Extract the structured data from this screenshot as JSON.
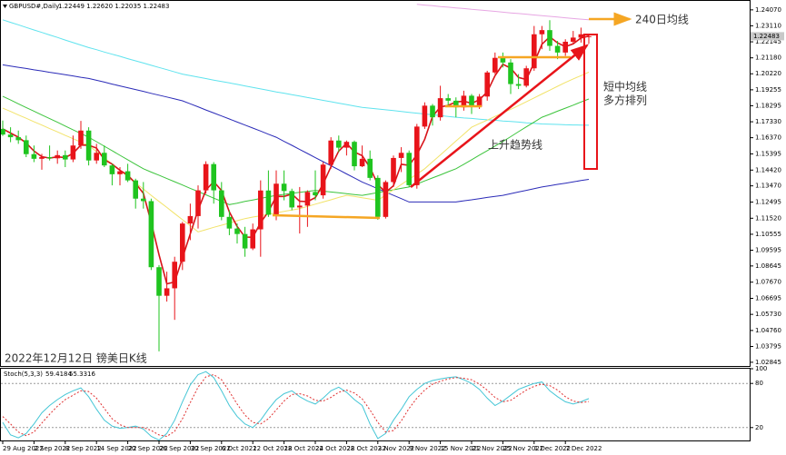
{
  "chart_data": [
    {
      "type": "candlestick",
      "title": "GBPUSD#,Daily",
      "subtitle": "1.22449 1.22620 1.22035 1.22483",
      "categories": [
        "29 Aug 2022",
        null,
        null,
        null,
        "2 Sep 2022",
        null,
        null,
        null,
        "8 Sep 2022",
        null,
        null,
        null,
        "14 Sep 2022",
        null,
        null,
        null,
        "20 Sep 2022",
        null,
        null,
        null,
        "26 Sep 2022",
        null,
        null,
        null,
        "30 Sep 2022",
        null,
        null,
        null,
        "6 Oct 2022",
        null,
        null,
        null,
        "12 Oct 2022",
        null,
        null,
        null,
        "18 Oct 2022",
        null,
        null,
        null,
        "24 Oct 2022",
        null,
        null,
        null,
        "28 Oct 2022",
        null,
        null,
        null,
        "3 Nov 2022",
        null,
        null,
        null,
        "9 Nov 2022",
        null,
        null,
        null,
        "15 Nov 2022",
        null,
        null,
        null,
        "21 Nov 2022",
        null,
        null,
        null,
        "25 Nov 2022",
        null,
        null,
        null,
        "1 Dec 2022",
        null,
        null,
        null,
        "7 Dec 2022",
        null,
        null,
        null
      ],
      "open": [
        1.169,
        1.1656,
        1.164,
        1.1622,
        1.1538,
        1.151,
        1.152,
        1.1513,
        1.1532,
        1.1506,
        1.159,
        1.168,
        1.15,
        1.1546,
        1.147,
        1.1417,
        1.1435,
        1.138,
        1.127,
        1.1255,
        1.0857,
        1.0685,
        1.073,
        1.089,
        1.112,
        1.1165,
        1.132,
        1.1478,
        1.132,
        1.116,
        1.109,
        1.1057,
        1.097,
        1.1085,
        1.1319,
        1.1173,
        1.136,
        1.1316,
        1.1217,
        1.1228,
        1.131,
        1.129,
        1.1475,
        1.162,
        1.1577,
        1.1612,
        1.1465,
        1.151,
        1.1395,
        1.116,
        1.137,
        1.1515,
        1.1546,
        1.1351,
        1.1704,
        1.183,
        1.176,
        1.1875,
        1.186,
        1.182,
        1.189,
        1.1823,
        1.1885,
        1.203,
        1.2118,
        1.209,
        1.196,
        1.195,
        1.2055,
        1.226,
        1.2285,
        1.219,
        1.215,
        1.2215,
        1.224,
        1.22449
      ],
      "high": [
        1.174,
        1.17,
        1.168,
        1.165,
        1.159,
        1.154,
        1.159,
        1.156,
        1.156,
        1.165,
        1.1738,
        1.17,
        1.16,
        1.159,
        1.148,
        1.146,
        1.148,
        1.139,
        1.137,
        1.127,
        1.087,
        1.083,
        1.092,
        1.113,
        1.124,
        1.135,
        1.1495,
        1.149,
        1.137,
        1.12,
        1.112,
        1.11,
        1.112,
        1.138,
        1.144,
        1.144,
        1.144,
        1.133,
        1.134,
        1.132,
        1.144,
        1.149,
        1.164,
        1.165,
        1.162,
        1.162,
        1.159,
        1.156,
        1.141,
        1.138,
        1.153,
        1.158,
        1.156,
        1.172,
        1.185,
        1.184,
        1.195,
        1.19,
        1.188,
        1.192,
        1.19,
        1.19,
        1.204,
        1.215,
        1.215,
        1.211,
        1.202,
        1.207,
        1.231,
        1.231,
        1.2345,
        1.222,
        1.223,
        1.228,
        1.23,
        1.2262
      ],
      "low": [
        1.1648,
        1.161,
        1.16,
        1.152,
        1.149,
        1.1444,
        1.15,
        1.148,
        1.146,
        1.149,
        1.157,
        1.147,
        1.148,
        1.146,
        1.135,
        1.135,
        1.137,
        1.121,
        1.121,
        1.084,
        1.035,
        1.065,
        1.054,
        1.084,
        1.102,
        1.109,
        1.13,
        1.124,
        1.114,
        1.105,
        1.1,
        1.092,
        1.096,
        1.092,
        1.116,
        1.114,
        1.126,
        1.12,
        1.106,
        1.11,
        1.126,
        1.127,
        1.145,
        1.155,
        1.153,
        1.144,
        1.146,
        1.138,
        1.1143,
        1.115,
        1.134,
        1.143,
        1.134,
        1.133,
        1.169,
        1.171,
        1.174,
        1.183,
        1.176,
        1.18,
        1.178,
        1.181,
        1.186,
        1.202,
        1.206,
        1.19,
        1.193,
        1.194,
        1.204,
        1.217,
        1.216,
        1.211,
        1.213,
        1.22,
        1.221,
        1.22035
      ],
      "close": [
        1.1656,
        1.164,
        1.1622,
        1.1538,
        1.151,
        1.152,
        1.1513,
        1.1532,
        1.1506,
        1.159,
        1.168,
        1.15,
        1.1546,
        1.147,
        1.1417,
        1.1435,
        1.138,
        1.127,
        1.1255,
        1.0857,
        1.0685,
        1.073,
        1.089,
        1.112,
        1.1165,
        1.132,
        1.1478,
        1.132,
        1.116,
        1.109,
        1.1057,
        1.097,
        1.1085,
        1.1319,
        1.1173,
        1.136,
        1.1316,
        1.1217,
        1.1228,
        1.131,
        1.129,
        1.1475,
        1.162,
        1.1577,
        1.1612,
        1.1465,
        1.151,
        1.1395,
        1.116,
        1.137,
        1.1515,
        1.1546,
        1.1351,
        1.1704,
        1.183,
        1.176,
        1.1875,
        1.186,
        1.182,
        1.189,
        1.1823,
        1.1885,
        1.203,
        1.2118,
        1.209,
        1.196,
        1.195,
        1.2055,
        1.226,
        1.2285,
        1.219,
        1.215,
        1.2215,
        1.224,
        1.226,
        1.22483
      ],
      "up_color": "#e8141a",
      "down_color": "#1fc41f",
      "series": [
        {
          "color": "#2b2bb8",
          "values": [
            1.2076,
            1.2069,
            1.2061,
            1.2054,
            1.2046,
            1.2039,
            1.2031,
            1.2024,
            1.2016,
            1.2009,
            1.2001,
            1.1994,
            1.1983,
            1.1972,
            1.196,
            1.1949,
            1.1938,
            1.1927,
            1.1916,
            1.1904,
            1.1893,
            1.1882,
            1.1871,
            1.1859,
            1.1841,
            1.1823,
            1.1804,
            1.1786,
            1.1768,
            1.175,
            1.1731,
            1.1713,
            1.1695,
            1.1677,
            1.1658,
            1.164,
            1.1615,
            1.1591,
            1.1566,
            1.1542,
            1.1517,
            1.1493,
            1.1468,
            1.1444,
            1.1419,
            1.1395,
            1.137,
            1.135,
            1.133,
            1.131,
            1.129,
            1.127,
            1.125,
            1.125,
            1.125,
            1.125,
            1.125,
            1.125,
            1.125,
            1.1257,
            1.1263,
            1.127,
            1.1277,
            1.1283,
            1.129,
            1.13,
            1.131,
            1.132,
            1.133,
            1.134,
            1.1348,
            1.1356,
            1.1363,
            1.1371,
            1.1379,
            1.1386
          ]
        },
        {
          "color": "#5fe3ee",
          "values": [
            1.2347,
            1.2332,
            1.2317,
            1.2301,
            1.2286,
            1.2271,
            1.2256,
            1.2241,
            1.2225,
            1.221,
            1.2195,
            1.218,
            1.2167,
            1.2153,
            1.214,
            1.2127,
            1.2113,
            1.21,
            1.2087,
            1.2073,
            1.206,
            1.2047,
            1.2033,
            1.202,
            1.2011,
            1.2002,
            1.1993,
            1.1984,
            1.1975,
            1.1967,
            1.1958,
            1.1949,
            1.194,
            1.1931,
            1.1922,
            1.1913,
            1.1905,
            1.1896,
            1.1888,
            1.1879,
            1.1871,
            1.1862,
            1.1854,
            1.1845,
            1.1837,
            1.1828,
            1.182,
            1.1815,
            1.181,
            1.1805,
            1.18,
            1.1795,
            1.179,
            1.1785,
            1.178,
            1.1775,
            1.177,
            1.1765,
            1.176,
            1.1756,
            1.1753,
            1.1749,
            1.1745,
            1.1742,
            1.1738,
            1.1735,
            1.1731,
            1.1727,
            1.1724,
            1.172,
            1.1718,
            1.1717,
            1.1715,
            1.1714,
            1.1713,
            1.1712
          ]
        },
        {
          "color": "#3cc43c",
          "values": [
            1.1886,
            1.1864,
            1.1841,
            1.1819,
            1.1797,
            1.1774,
            1.1752,
            1.173,
            1.1707,
            1.1685,
            1.1662,
            1.164,
            1.1613,
            1.1586,
            1.1559,
            1.1531,
            1.1504,
            1.1477,
            1.145,
            1.143,
            1.1411,
            1.1391,
            1.1372,
            1.1352,
            1.1332,
            1.1313,
            1.1293,
            1.1273,
            1.1254,
            1.1234,
            1.1243,
            1.1253,
            1.1262,
            1.1271,
            1.1281,
            1.129,
            1.1296,
            1.1302,
            1.1308,
            1.1314,
            1.132,
            1.1315,
            1.131,
            1.1305,
            1.13,
            1.1295,
            1.129,
            1.1298,
            1.1307,
            1.1315,
            1.1323,
            1.1332,
            1.134,
            1.1358,
            1.1377,
            1.1395,
            1.1413,
            1.1432,
            1.145,
            1.1477,
            1.1504,
            1.1532,
            1.1559,
            1.1587,
            1.1614,
            1.1643,
            1.1673,
            1.1702,
            1.1731,
            1.176,
            1.1778,
            1.1797,
            1.1815,
            1.1833,
            1.1852,
            1.187
          ]
        },
        {
          "color": "#f2e36a",
          "values": [
            1.1815,
            1.1795,
            1.1774,
            1.1754,
            1.1733,
            1.1713,
            1.1692,
            1.1672,
            1.1651,
            1.1631,
            1.161,
            1.159,
            1.1553,
            1.1515,
            1.1478,
            1.144,
            1.1403,
            1.1365,
            1.1328,
            1.129,
            1.1253,
            1.1217,
            1.118,
            1.1143,
            1.1107,
            1.107,
            1.1083,
            1.1097,
            1.111,
            1.1123,
            1.1137,
            1.115,
            1.1159,
            1.1167,
            1.1176,
            1.1184,
            1.1193,
            1.1201,
            1.121,
            1.1223,
            1.1237,
            1.125,
            1.1263,
            1.1277,
            1.129,
            1.1283,
            1.1275,
            1.1268,
            1.126,
            1.1292,
            1.1323,
            1.1355,
            1.1387,
            1.1418,
            1.145,
            1.1492,
            1.1533,
            1.1575,
            1.1617,
            1.1658,
            1.17,
            1.1722,
            1.1743,
            1.1765,
            1.1787,
            1.1808,
            1.183,
            1.1853,
            1.1877,
            1.19,
            1.1923,
            1.1947,
            1.197,
            1.1991,
            1.2011,
            1.2032
          ]
        },
        {
          "color": "#d8141a",
          "values": [
            1.169,
            1.1665,
            1.164,
            1.1605,
            1.1557,
            1.1523,
            1.1514,
            1.1522,
            1.1517,
            1.1543,
            1.1593,
            1.1592,
            1.1575,
            1.1505,
            1.1478,
            1.1441,
            1.1411,
            1.1362,
            1.1302,
            1.1127,
            1.0932,
            1.0757,
            1.0768,
            1.0913,
            1.1058,
            1.1202,
            1.1321,
            1.1373,
            1.1319,
            1.119,
            1.1102,
            1.1039,
            1.1037,
            1.1125,
            1.1192,
            1.1284,
            1.1283,
            1.1298,
            1.1254,
            1.1252,
            1.1276,
            1.1358,
            1.1462,
            1.1557,
            1.1603,
            1.1551,
            1.1529,
            1.1457,
            1.1355,
            1.1308,
            1.1348,
            1.1477,
            1.1471,
            1.1534,
            1.1628,
            1.1765,
            1.1822,
            1.1832,
            1.1852,
            1.1857,
            1.1844,
            1.1866,
            1.1913,
            1.2011,
            1.2079,
            1.2056,
            1.2,
            1.1988,
            1.2088,
            1.22,
            1.2245,
            1.2208,
            1.2185,
            1.2202,
            1.2238,
            1.2249
          ]
        },
        {
          "color": "#e7a6e3",
          "values": [
            null,
            null,
            null,
            null,
            null,
            null,
            null,
            null,
            null,
            null,
            null,
            null,
            null,
            null,
            null,
            null,
            null,
            null,
            null,
            null,
            null,
            null,
            null,
            null,
            null,
            null,
            null,
            null,
            null,
            null,
            null,
            null,
            null,
            null,
            null,
            null,
            null,
            null,
            null,
            null,
            null,
            null,
            null,
            null,
            null,
            null,
            null,
            null,
            null,
            null,
            null,
            null,
            null,
            1.244,
            1.2436,
            1.2432,
            1.2427,
            1.2423,
            1.2419,
            1.2415,
            1.241,
            1.2406,
            1.2402,
            1.2398,
            1.2393,
            1.2389,
            1.2385,
            1.2381,
            1.2376,
            1.2372,
            1.2368,
            1.2364,
            1.2359,
            1.2355,
            1.2351,
            1.2347
          ]
        }
      ],
      "ylim": [
        1.0262,
        1.245
      ],
      "yticks": [
        {
          "value": 1.2407,
          "label": "1.24070"
        },
        {
          "value": 1.2311,
          "label": "1.23110"
        },
        1.22145,
        {
          "value": 1.2118,
          "label": "1.21180"
        },
        {
          "value": 1.2022,
          "label": "1.20220"
        },
        1.19255,
        1.18295,
        {
          "value": 1.1733,
          "label": "1.17330"
        },
        {
          "value": 1.1637,
          "label": "1.16370"
        },
        1.15395,
        {
          "value": 1.1442,
          "label": "1.14420"
        },
        {
          "value": 1.1347,
          "label": "1.13470"
        },
        1.12495,
        {
          "value": 1.1152,
          "label": "1.11520"
        },
        1.10555,
        1.09595,
        1.08645,
        {
          "value": 1.0767,
          "label": "1.07670"
        },
        1.06695,
        {
          "value": 1.0573,
          "label": "1.05730"
        },
        {
          "value": 1.0476,
          "label": "1.04760"
        },
        1.03795,
        1.02845
      ],
      "price_label": {
        "value": 1.22483,
        "label": "1.22483"
      },
      "annotations": [
        "240日均线",
        "短中均线",
        "多方排列",
        "上升趋势线",
        "2022年12月12日 镑美日K线"
      ]
    },
    {
      "type": "line",
      "title": "Stoch(5,3,3)",
      "series": [
        {
          "color": "#45c6d6",
          "dash": false,
          "values": [
            27,
            10,
            6,
            12,
            25,
            40,
            50,
            58,
            65,
            70,
            74,
            62,
            45,
            30,
            22,
            19,
            20,
            22,
            18,
            8,
            3,
            12,
            30,
            55,
            78,
            92,
            96,
            88,
            70,
            50,
            35,
            25,
            20,
            30,
            45,
            58,
            66,
            70,
            62,
            56,
            52,
            60,
            70,
            75,
            68,
            58,
            50,
            25,
            5,
            12,
            30,
            45,
            62,
            72,
            80,
            84,
            86,
            88,
            89,
            85,
            80,
            72,
            60,
            50,
            56,
            64,
            72,
            76,
            80,
            82,
            70,
            62,
            55,
            52,
            55,
            59.4184
          ]
        },
        {
          "color": "#e03030",
          "dash": true,
          "values": [
            35,
            25,
            14,
            9,
            14,
            26,
            38,
            49,
            58,
            64,
            70,
            69,
            60,
            46,
            32,
            24,
            20,
            20,
            20,
            16,
            10,
            8,
            15,
            32,
            54,
            75,
            89,
            92,
            85,
            69,
            52,
            37,
            27,
            25,
            32,
            44,
            56,
            65,
            66,
            63,
            57,
            56,
            61,
            68,
            71,
            67,
            59,
            44,
            27,
            14,
            16,
            29,
            46,
            60,
            71,
            79,
            83,
            86,
            88,
            87,
            85,
            79,
            71,
            61,
            55,
            57,
            64,
            71,
            76,
            79,
            77,
            71,
            62,
            56,
            54,
            55.3316
          ]
        }
      ],
      "ylim": [
        0,
        100
      ],
      "yticks": [
        100,
        80,
        20
      ],
      "grid": true
    }
  ]
}
